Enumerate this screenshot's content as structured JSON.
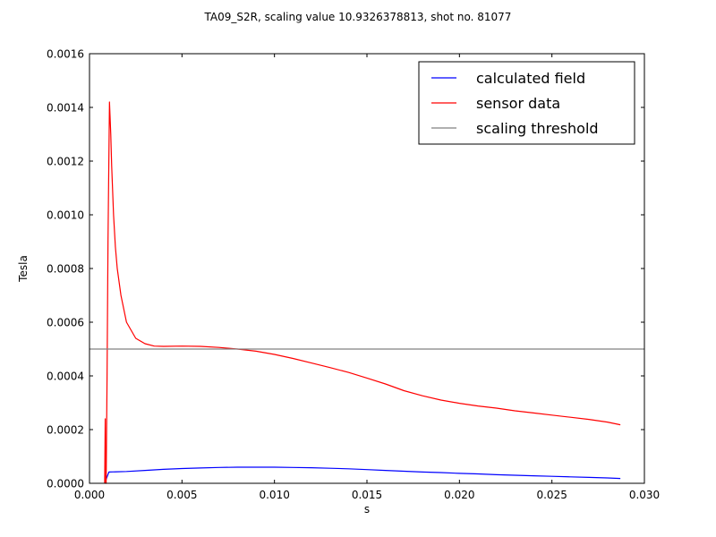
{
  "chart_data": {
    "type": "line",
    "title": "TA09_S2R, scaling value 10.9326378813, shot no. 81077",
    "xlabel": "s",
    "ylabel": "Tesla",
    "xlim": [
      0,
      0.03
    ],
    "ylim": [
      0,
      0.0016
    ],
    "x_ticks": [
      "0.000",
      "0.005",
      "0.010",
      "0.015",
      "0.020",
      "0.025",
      "0.030"
    ],
    "y_ticks": [
      "0.0000",
      "0.0002",
      "0.0004",
      "0.0006",
      "0.0008",
      "0.0010",
      "0.0012",
      "0.0014",
      "0.0016"
    ],
    "grid": false,
    "legend_position": "top-right",
    "series": [
      {
        "name": "calculated field",
        "color": "#0000ff",
        "x": [
          0.00085,
          0.0009,
          0.00105,
          0.0015,
          0.002,
          0.003,
          0.004,
          0.005,
          0.006,
          0.007,
          0.008,
          0.009,
          0.01,
          0.011,
          0.012,
          0.013,
          0.014,
          0.015,
          0.016,
          0.017,
          0.018,
          0.019,
          0.02,
          0.021,
          0.022,
          0.023,
          0.024,
          0.025,
          0.026,
          0.027,
          0.028,
          0.0287
        ],
        "y": [
          0.0,
          1.5e-05,
          4.2e-05,
          4.3e-05,
          4.4e-05,
          4.8e-05,
          5.2e-05,
          5.5e-05,
          5.7e-05,
          5.9e-05,
          6e-05,
          6e-05,
          6e-05,
          5.9e-05,
          5.8e-05,
          5.6e-05,
          5.4e-05,
          5.1e-05,
          4.8e-05,
          4.5e-05,
          4.2e-05,
          4e-05,
          3.7e-05,
          3.5e-05,
          3.2e-05,
          3e-05,
          2.8e-05,
          2.6e-05,
          2.4e-05,
          2.2e-05,
          2e-05,
          1.8e-05
        ]
      },
      {
        "name": "sensor data",
        "color": "#ff0000",
        "x": [
          0.00082,
          0.00085,
          0.00087,
          0.00088,
          0.0009,
          0.00095,
          0.001,
          0.00108,
          0.00115,
          0.0012,
          0.0013,
          0.0014,
          0.0015,
          0.0017,
          0.002,
          0.0025,
          0.003,
          0.0035,
          0.004,
          0.005,
          0.006,
          0.007,
          0.008,
          0.009,
          0.01,
          0.011,
          0.012,
          0.013,
          0.014,
          0.015,
          0.016,
          0.017,
          0.018,
          0.019,
          0.02,
          0.021,
          0.022,
          0.023,
          0.024,
          0.025,
          0.026,
          0.027,
          0.028,
          0.0287
        ],
        "y": [
          0.0,
          0.00024,
          0.0,
          3e-05,
          0.0,
          0.0004,
          0.0009,
          0.00142,
          0.0013,
          0.00118,
          0.001,
          0.00088,
          0.0008,
          0.0007,
          0.0006,
          0.00054,
          0.00052,
          0.000511,
          0.00051,
          0.000511,
          0.00051,
          0.000506,
          0.0005,
          0.000492,
          0.00048,
          0.000465,
          0.000448,
          0.000431,
          0.000413,
          0.000392,
          0.00037,
          0.000345,
          0.000326,
          0.00031,
          0.000298,
          0.000288,
          0.00028,
          0.00027,
          0.000262,
          0.000254,
          0.000246,
          0.000238,
          0.000228,
          0.000218
        ]
      },
      {
        "name": "scaling threshold",
        "color": "#808080",
        "x": [
          0.0,
          0.03
        ],
        "y": [
          0.0005,
          0.0005
        ]
      }
    ]
  }
}
